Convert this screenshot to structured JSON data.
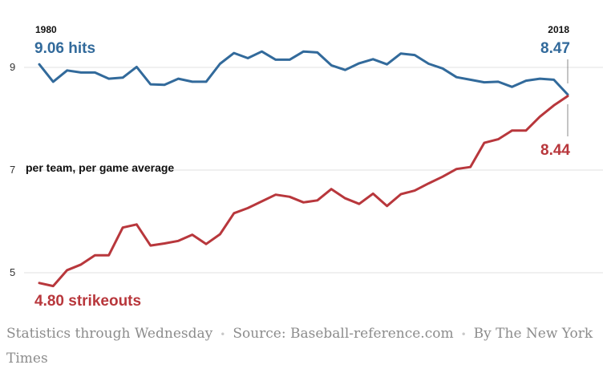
{
  "chart_data": {
    "type": "line",
    "ylabel": "per team, per game average",
    "yticks": [
      5,
      7,
      9
    ],
    "ylim": [
      4.5,
      10.0
    ],
    "grid": true,
    "year_labels": {
      "start": "1980",
      "end": "2018"
    },
    "x": [
      1980,
      1981,
      1982,
      1983,
      1984,
      1985,
      1986,
      1987,
      1988,
      1989,
      1990,
      1991,
      1992,
      1993,
      1994,
      1995,
      1996,
      1997,
      1998,
      1999,
      2000,
      2001,
      2002,
      2003,
      2004,
      2005,
      2006,
      2007,
      2008,
      2009,
      2010,
      2011,
      2012,
      2013,
      2014,
      2015,
      2016,
      2017,
      2018
    ],
    "series": [
      {
        "name": "hits",
        "color": "#326a9b",
        "start_label": "9.06 hits",
        "end_label": "8.47",
        "values": [
          9.06,
          8.72,
          8.94,
          8.9,
          8.9,
          8.78,
          8.8,
          9.01,
          8.67,
          8.66,
          8.78,
          8.72,
          8.72,
          9.07,
          9.28,
          9.18,
          9.31,
          9.15,
          9.15,
          9.31,
          9.29,
          9.04,
          8.95,
          9.08,
          9.16,
          9.06,
          9.27,
          9.24,
          9.07,
          8.98,
          8.81,
          8.76,
          8.71,
          8.72,
          8.62,
          8.74,
          8.78,
          8.76,
          8.47
        ]
      },
      {
        "name": "strikeouts",
        "color": "#b8373c",
        "start_label": "4.80 strikeouts",
        "end_label": "8.44",
        "values": [
          4.8,
          4.74,
          5.05,
          5.16,
          5.34,
          5.34,
          5.88,
          5.94,
          5.53,
          5.57,
          5.62,
          5.74,
          5.56,
          5.75,
          6.16,
          6.26,
          6.39,
          6.52,
          6.48,
          6.37,
          6.41,
          6.63,
          6.45,
          6.34,
          6.54,
          6.3,
          6.53,
          6.6,
          6.74,
          6.87,
          7.02,
          7.06,
          7.53,
          7.6,
          7.77,
          7.77,
          8.04,
          8.26,
          8.44
        ]
      }
    ]
  },
  "footer": {
    "stat": "Statistics through Wednesday",
    "source": "Source: Baseball-reference.com",
    "byline": "By The New York Times"
  }
}
